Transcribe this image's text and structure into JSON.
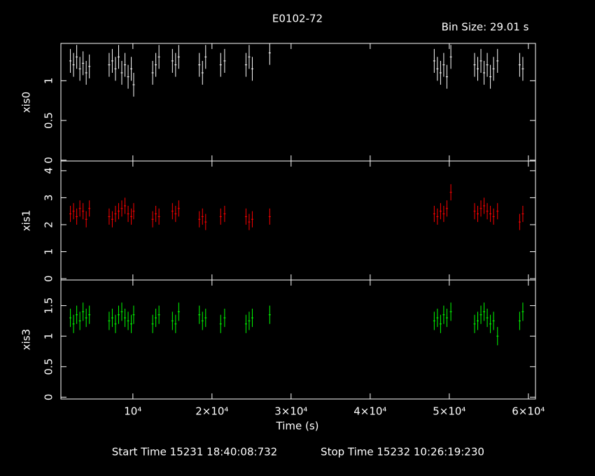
{
  "chart_data": {
    "type": "scatter",
    "title": "E0102-72",
    "subtitle": "Bin Size: 29.01 s",
    "xlabel": "Time (s)",
    "xlim": [
      900,
      60900
    ],
    "xticks": [
      {
        "value": 10000,
        "label": "10⁴"
      },
      {
        "value": 20000,
        "label": "2×10⁴"
      },
      {
        "value": 30000,
        "label": "3×10⁴"
      },
      {
        "value": 40000,
        "label": "4×10⁴"
      },
      {
        "value": 50000,
        "label": "5×10⁴"
      },
      {
        "value": 60000,
        "label": "6×10⁴"
      }
    ],
    "x": [
      2100,
      2500,
      2900,
      3300,
      3700,
      4100,
      4500,
      7000,
      7400,
      7800,
      8200,
      8600,
      9000,
      9400,
      9800,
      10100,
      12500,
      12900,
      13300,
      15000,
      15400,
      15800,
      18400,
      18800,
      19200,
      21100,
      21600,
      24300,
      24700,
      25100,
      27300,
      48100,
      48500,
      48900,
      49300,
      49700,
      50200,
      53200,
      53600,
      54000,
      54400,
      54800,
      55200,
      55600,
      56100,
      58900,
      59300
    ],
    "panels": [
      {
        "ylabel": "xis0",
        "color": "#ffffff",
        "ylim": [
          -0.01,
          1.47
        ],
        "yticks": [
          0,
          0.5,
          1
        ],
        "error": 0.15,
        "values": [
          1.25,
          1.2,
          1.3,
          1.15,
          1.22,
          1.1,
          1.18,
          1.2,
          1.25,
          1.15,
          1.3,
          1.1,
          1.2,
          1.05,
          1.15,
          0.95,
          1.1,
          1.2,
          1.3,
          1.25,
          1.2,
          1.3,
          1.2,
          1.1,
          1.3,
          1.2,
          1.25,
          1.2,
          1.3,
          1.15,
          1.35,
          1.25,
          1.15,
          1.1,
          1.2,
          1.05,
          1.3,
          1.2,
          1.15,
          1.25,
          1.1,
          1.2,
          1.05,
          1.15,
          1.25,
          1.2,
          1.15
        ]
      },
      {
        "ylabel": "xis1",
        "color": "#ff0000",
        "ylim": [
          -0.05,
          4.36
        ],
        "yticks": [
          0,
          1,
          2,
          3,
          4
        ],
        "error": 0.3,
        "values": [
          2.4,
          2.5,
          2.3,
          2.6,
          2.5,
          2.2,
          2.6,
          2.3,
          2.2,
          2.4,
          2.5,
          2.6,
          2.7,
          2.4,
          2.3,
          2.5,
          2.2,
          2.4,
          2.3,
          2.5,
          2.4,
          2.6,
          2.2,
          2.3,
          2.1,
          2.3,
          2.4,
          2.3,
          2.1,
          2.2,
          2.3,
          2.4,
          2.3,
          2.5,
          2.4,
          2.6,
          3.2,
          2.5,
          2.4,
          2.6,
          2.7,
          2.5,
          2.4,
          2.3,
          2.5,
          2.1,
          2.4
        ]
      },
      {
        "ylabel": "xis3",
        "color": "#00ff00",
        "ylim": [
          -0.03,
          1.92
        ],
        "yticks": [
          0,
          0.5,
          1,
          1.5
        ],
        "error": 0.15,
        "values": [
          1.3,
          1.2,
          1.35,
          1.25,
          1.4,
          1.3,
          1.35,
          1.25,
          1.3,
          1.2,
          1.35,
          1.4,
          1.3,
          1.25,
          1.2,
          1.35,
          1.2,
          1.3,
          1.35,
          1.25,
          1.2,
          1.4,
          1.35,
          1.25,
          1.3,
          1.2,
          1.3,
          1.2,
          1.25,
          1.3,
          1.35,
          1.25,
          1.3,
          1.2,
          1.35,
          1.3,
          1.4,
          1.2,
          1.25,
          1.35,
          1.4,
          1.3,
          1.2,
          1.25,
          1.0,
          1.25,
          1.4
        ]
      }
    ],
    "start_time": "Start Time 15231 18:40:08:732",
    "stop_time": "Stop Time 15232 10:26:19:230"
  }
}
